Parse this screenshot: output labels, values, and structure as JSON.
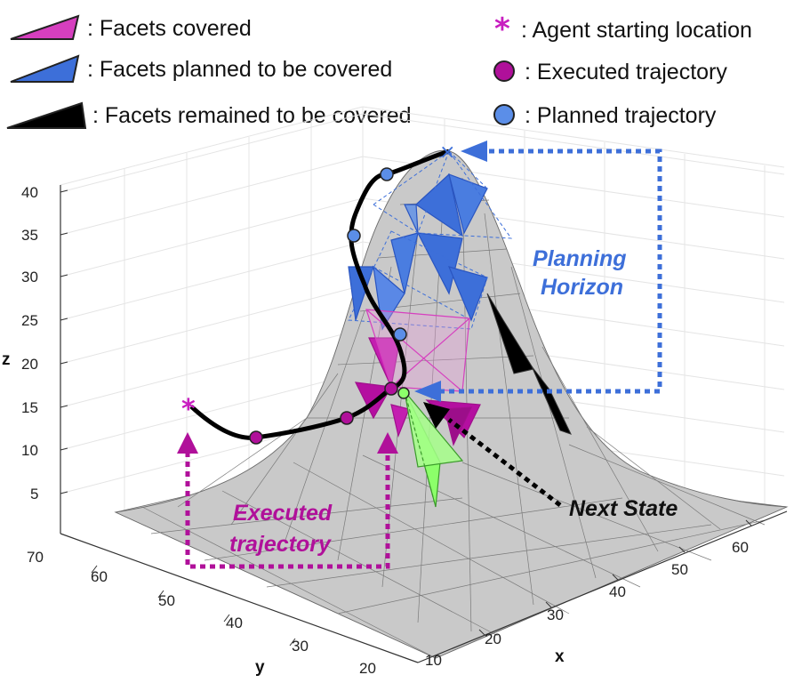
{
  "legend": {
    "facets_covered": ": Facets covered",
    "facets_planned": ": Facets planned to be covered",
    "facets_remaining": ": Facets remained to be covered",
    "agent_start": ": Agent starting location",
    "executed": ": Executed trajectory",
    "planned": ": Planned trajectory"
  },
  "axes": {
    "z_label": "z",
    "y_label": "y",
    "x_label": "x",
    "z_ticks": [
      "40",
      "35",
      "30",
      "25",
      "20",
      "15",
      "10",
      "5"
    ],
    "y_ticks": [
      "70",
      "60",
      "50",
      "40",
      "30",
      "20"
    ],
    "x_ticks": [
      "10",
      "20",
      "30",
      "40",
      "50",
      "60"
    ]
  },
  "annotations": {
    "planning_horizon_line1": "Planning",
    "planning_horizon_line2": "Horizon",
    "executed_line1": "Executed",
    "executed_line2": "trajectory",
    "next_state": "Next State"
  },
  "colors": {
    "covered": "#d63fbf",
    "planned": "#3d6fd9",
    "remaining": "#000000",
    "executed": "#b0109a",
    "planned_point": "#5b8ee8",
    "next_state": "#8cff6a",
    "surface": "#cfcfcf"
  }
}
